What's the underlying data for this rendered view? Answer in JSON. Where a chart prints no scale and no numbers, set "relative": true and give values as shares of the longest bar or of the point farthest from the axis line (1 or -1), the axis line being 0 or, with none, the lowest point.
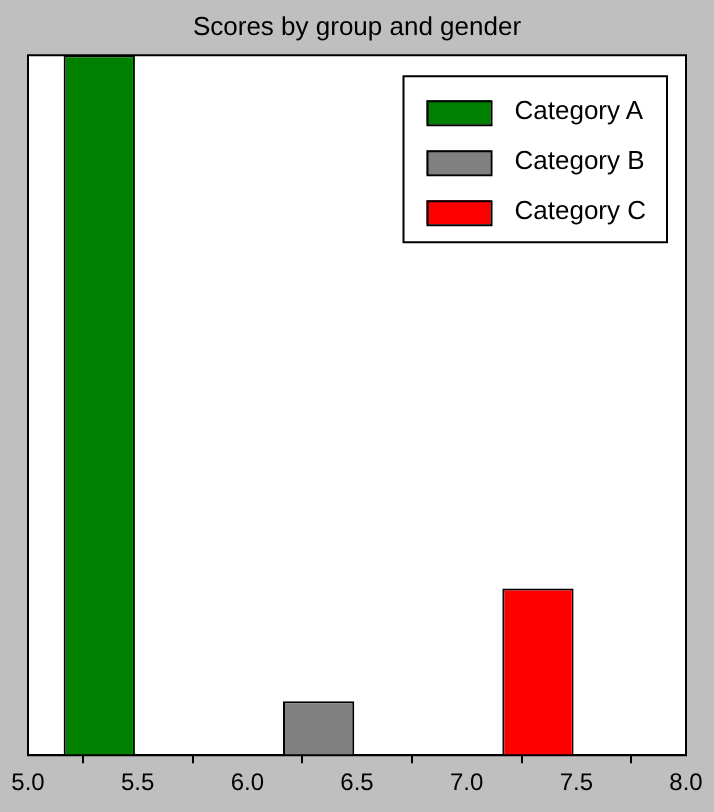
{
  "chart_data": {
    "type": "bar",
    "title": "Scores by group and gender",
    "relative": true,
    "xlim": [
      5,
      8
    ],
    "xticks": [
      {
        "value": 5,
        "label": "5.0"
      },
      {
        "value": 5.5,
        "label": "5.5"
      },
      {
        "value": 6,
        "label": "6.0"
      },
      {
        "value": 6.5,
        "label": "6.5"
      },
      {
        "value": 7,
        "label": "7.0"
      },
      {
        "value": 7.5,
        "label": "7.5"
      },
      {
        "value": 8,
        "label": "8.0"
      }
    ],
    "series": [
      {
        "name": "Category A",
        "color": "#008000",
        "x": [
          5.325
        ],
        "values": [
          1
        ]
      },
      {
        "name": "Category B",
        "color": "#808080",
        "x": [
          6.325
        ],
        "values": [
          0.077
        ]
      },
      {
        "name": "Category C",
        "color": "#ff0000",
        "x": [
          7.325
        ],
        "values": [
          0.238
        ]
      }
    ],
    "legend": "top right",
    "grid": false
  }
}
